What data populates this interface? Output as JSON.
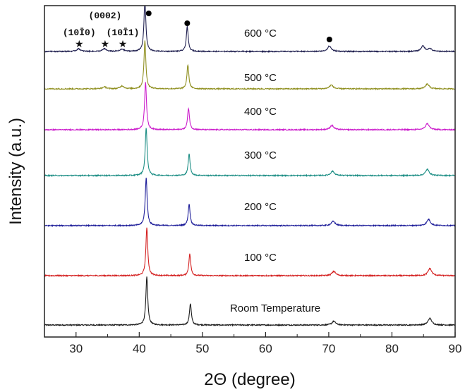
{
  "chart_data": {
    "type": "line",
    "title": "",
    "xlabel": "2Θ (degree)",
    "ylabel": "Intensity (a.u.)",
    "xlim": [
      25,
      90
    ],
    "xticks": [
      30,
      40,
      50,
      60,
      70,
      80,
      90
    ],
    "y_ticks_shown": false,
    "grid": false,
    "legend": "none",
    "series": [
      {
        "name": "Room Temperature",
        "color": "#1a1a1a",
        "peaks": [
          {
            "x": 41.2,
            "h": 1.0
          },
          {
            "x": 48.1,
            "h": 0.45
          },
          {
            "x": 70.8,
            "h": 0.08
          },
          {
            "x": 86.0,
            "h": 0.14
          }
        ]
      },
      {
        "name": "100 °C",
        "color": "#d42020",
        "peaks": [
          {
            "x": 41.2,
            "h": 1.0
          },
          {
            "x": 48.0,
            "h": 0.45
          },
          {
            "x": 70.8,
            "h": 0.09
          },
          {
            "x": 86.0,
            "h": 0.15
          }
        ]
      },
      {
        "name": "200 °C",
        "color": "#1f1f9a",
        "peaks": [
          {
            "x": 41.1,
            "h": 1.0
          },
          {
            "x": 47.9,
            "h": 0.45
          },
          {
            "x": 70.7,
            "h": 0.09
          },
          {
            "x": 85.8,
            "h": 0.13
          }
        ]
      },
      {
        "name": "300 °C",
        "color": "#1f8f86",
        "peaks": [
          {
            "x": 41.1,
            "h": 1.0
          },
          {
            "x": 47.9,
            "h": 0.45
          },
          {
            "x": 70.6,
            "h": 0.09
          },
          {
            "x": 85.6,
            "h": 0.13
          }
        ]
      },
      {
        "name": "400 °C",
        "color": "#cc1fcc",
        "peaks": [
          {
            "x": 41.0,
            "h": 1.0
          },
          {
            "x": 47.8,
            "h": 0.45
          },
          {
            "x": 70.5,
            "h": 0.09
          },
          {
            "x": 85.6,
            "h": 0.13
          }
        ]
      },
      {
        "name": "500 °C",
        "color": "#8f8f1f",
        "peaks": [
          {
            "x": 40.9,
            "h": 1.0
          },
          {
            "x": 47.7,
            "h": 0.5
          },
          {
            "x": 70.4,
            "h": 0.08
          },
          {
            "x": 85.6,
            "h": 0.1
          },
          {
            "x": 37.3,
            "h": 0.06
          },
          {
            "x": 34.5,
            "h": 0.04
          }
        ]
      },
      {
        "name": "600 °C",
        "color": "#1f1f4f",
        "peaks": [
          {
            "x": 40.9,
            "h": 1.15
          },
          {
            "x": 47.6,
            "h": 0.55
          },
          {
            "x": 70.1,
            "h": 0.12
          },
          {
            "x": 84.9,
            "h": 0.12
          },
          {
            "x": 86.0,
            "h": 0.06
          },
          {
            "x": 30.4,
            "h": 0.06
          },
          {
            "x": 34.5,
            "h": 0.06
          },
          {
            "x": 37.3,
            "h": 0.05
          }
        ]
      }
    ],
    "annotations": [
      {
        "text": "(10Ī0)",
        "x": 30.5,
        "marker": "★",
        "marker_x": 30.5
      },
      {
        "text": "(0002)",
        "x": 34.6,
        "marker": "★",
        "marker_x": 34.6
      },
      {
        "text": "(10Ī1)",
        "x": 37.4,
        "marker": "★",
        "marker_x": 37.4
      }
    ],
    "circle_markers_x": [
      41.5,
      47.6,
      70.1
    ]
  }
}
